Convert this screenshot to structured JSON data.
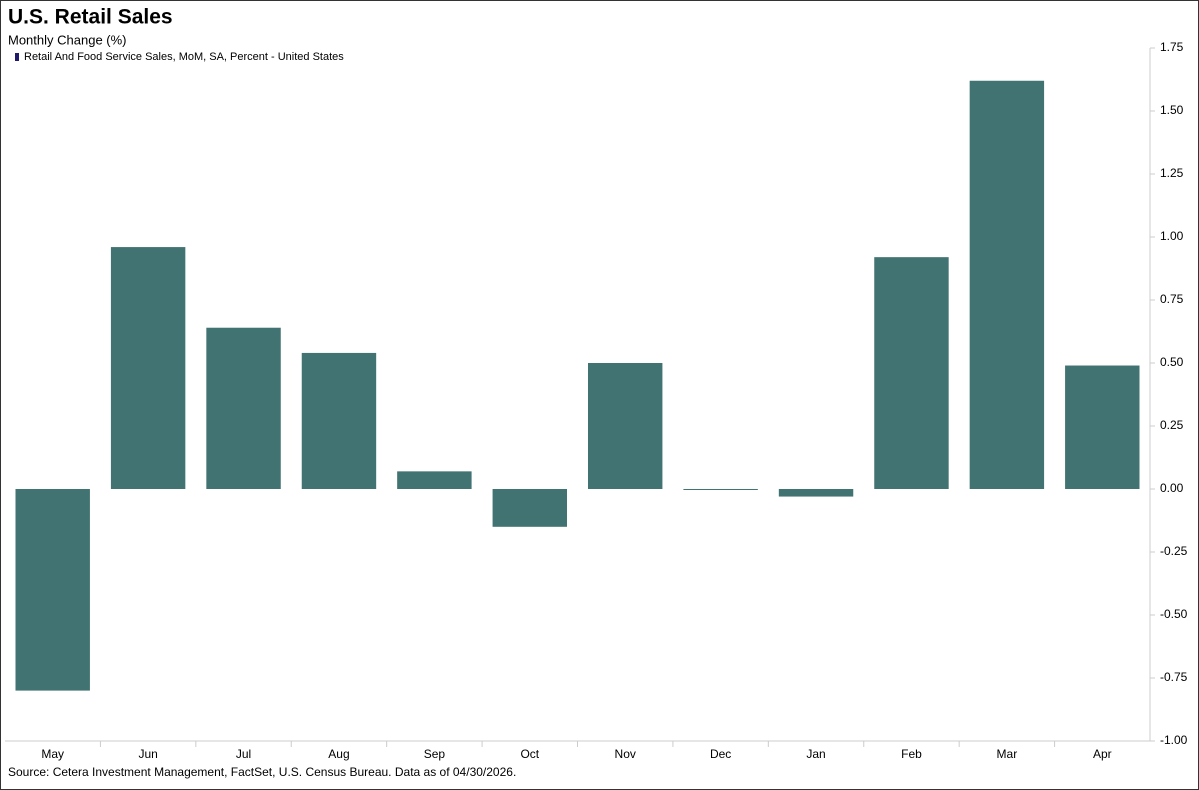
{
  "chart_data": {
    "type": "bar",
    "title": "U.S. Retail Sales",
    "subtitle": "Monthly Change (%)",
    "source": "Source: Cetera Investment Management, FactSet, U.S. Census Bureau. Data as of 04/30/2026.",
    "categories": [
      "May",
      "Jun",
      "Jul",
      "Aug",
      "Sep",
      "Oct",
      "Nov",
      "Dec",
      "Jan",
      "Feb",
      "Mar",
      "Apr"
    ],
    "series": [
      {
        "name": "Retail And Food Service Sales, MoM, SA, Percent - United States",
        "color": "#417372",
        "values": [
          -0.8,
          0.96,
          0.64,
          0.54,
          0.07,
          -0.15,
          0.5,
          -0.004,
          -0.03,
          0.92,
          1.62,
          0.49
        ]
      }
    ],
    "legend_marker_color": "#1f1a6b",
    "ylim": [
      -1.0,
      1.75
    ],
    "yticks": [
      {
        "value": -1.0,
        "label": "-1.00"
      },
      {
        "value": -0.75,
        "label": "-0.75"
      },
      {
        "value": -0.5,
        "label": "-0.50"
      },
      {
        "value": -0.25,
        "label": "-0.25"
      },
      {
        "value": 0,
        "label": "0.00"
      },
      {
        "value": 0.25,
        "label": "0.25"
      },
      {
        "value": 0.5,
        "label": "0.50"
      },
      {
        "value": 0.75,
        "label": "0.75"
      },
      {
        "value": 1.0,
        "label": "1.00"
      },
      {
        "value": 1.25,
        "label": "1.25"
      },
      {
        "value": 1.5,
        "label": "1.50"
      },
      {
        "value": 1.75,
        "label": "1.75"
      }
    ],
    "y_axis_side": "right",
    "grid": false
  }
}
